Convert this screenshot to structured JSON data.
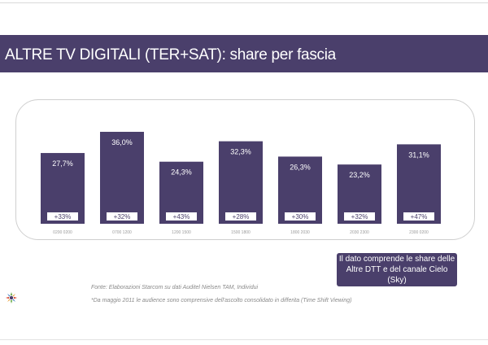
{
  "header": {
    "title": "ALTRE TV DIGITALI (TER+SAT): share per fascia"
  },
  "chart_data": {
    "type": "bar",
    "categories": [
      "0200 0200",
      "0700 1200",
      "1200 1500",
      "1500 1800",
      "1800 2030",
      "2030 2300",
      "2300 0200"
    ],
    "values": [
      27.7,
      36.0,
      24.3,
      32.3,
      26.3,
      23.2,
      31.1
    ],
    "value_labels": [
      "27,7%",
      "36,0%",
      "24,3%",
      "32,3%",
      "26,3%",
      "23,2%",
      "31,1%"
    ],
    "growth_labels": [
      "+33%",
      "+32%",
      "+43%",
      "+28%",
      "+30%",
      "+32%",
      "+47%"
    ],
    "bar_color": "#4a3f6b",
    "ylim": [
      0,
      36.0
    ]
  },
  "note": {
    "text": "Il dato comprende le share delle Altre DTT e del canale Cielo (Sky)"
  },
  "source": "Fonte: Elaborazioni Starcom su dati Auditel Nielsen TAM, Individui",
  "footnote": "*Da maggio 2011 le audience sono comprensive dell'ascolto consolidato in differita (Time Shift Viewing)",
  "colors": {
    "brand": "#4a3f6b",
    "badge_bg": "#ffffff"
  },
  "logo": {
    "icon": "starcom-logo-icon"
  }
}
